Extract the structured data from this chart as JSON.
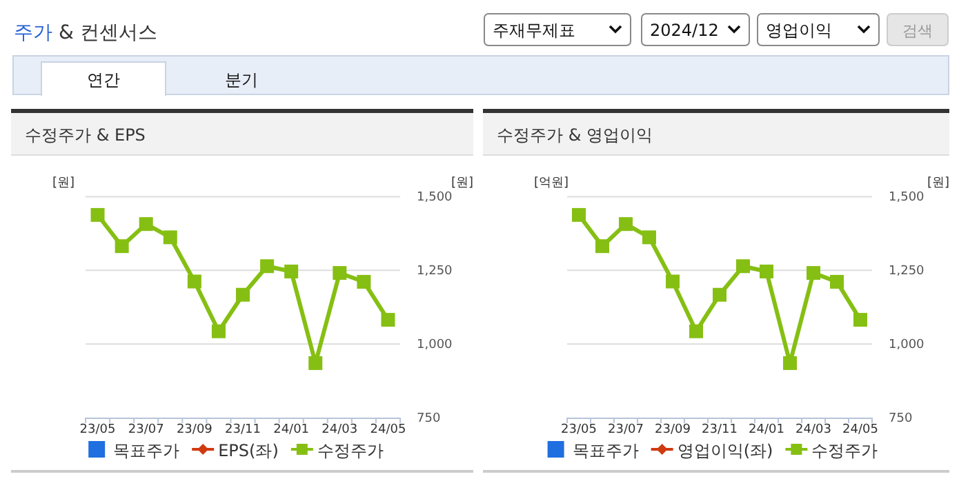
{
  "chart_data": [
    {
      "type": "other",
      "title": "주가 & 컨센서스",
      "annotations": [
        "주재무제표",
        "2024/12",
        "영업이익",
        "검색",
        "연간",
        "분기"
      ]
    },
    {
      "type": "line",
      "title": "수정주가 & EPS",
      "ylabel": "[원]",
      "y2label": "[원]",
      "categories": [
        "23/05",
        null,
        "23/07",
        null,
        "23/09",
        null,
        "23/11",
        null,
        "24/01",
        null,
        "24/03",
        null,
        "24/05"
      ],
      "y2lim": [
        750,
        1500
      ],
      "y2ticks": [
        {
          "value": 750,
          "label": "750"
        },
        {
          "value": 1000,
          "label": "1,000"
        },
        {
          "value": 1250,
          "label": "1,250"
        },
        {
          "value": 1500,
          "label": "1,500"
        }
      ],
      "grid": "y",
      "legend": "bottom",
      "series": [
        {
          "name": "목표주가",
          "type": "bar",
          "color": "#1f6fe0",
          "values": [
            null,
            null,
            null,
            null,
            null,
            null,
            null,
            null,
            null,
            null,
            null,
            null,
            null
          ]
        },
        {
          "name": "EPS(좌)",
          "type": "line",
          "marker": "diamond",
          "color": "#d03a10",
          "values": [
            null,
            null,
            null,
            null,
            null,
            null,
            null,
            null,
            null,
            null,
            null,
            null,
            null
          ]
        },
        {
          "name": "수정주가",
          "type": "line",
          "marker": "square",
          "axis": "y2",
          "color": "#86bf13",
          "values": [
            1438,
            1332,
            1407,
            1362,
            1212,
            1043,
            1167,
            1264,
            1246,
            935,
            1241,
            1211,
            1082
          ]
        }
      ]
    },
    {
      "type": "line",
      "title": "수정주가 & 영업이익",
      "ylabel": "[억원]",
      "y2label": "[원]",
      "categories": [
        "23/05",
        null,
        "23/07",
        null,
        "23/09",
        null,
        "23/11",
        null,
        "24/01",
        null,
        "24/03",
        null,
        "24/05"
      ],
      "y2lim": [
        750,
        1500
      ],
      "y2ticks": [
        {
          "value": 750,
          "label": "750"
        },
        {
          "value": 1000,
          "label": "1,000"
        },
        {
          "value": 1250,
          "label": "1,250"
        },
        {
          "value": 1500,
          "label": "1,500"
        }
      ],
      "grid": "y",
      "legend": "bottom",
      "series": [
        {
          "name": "목표주가",
          "type": "bar",
          "color": "#1f6fe0",
          "values": [
            null,
            null,
            null,
            null,
            null,
            null,
            null,
            null,
            null,
            null,
            null,
            null,
            null
          ]
        },
        {
          "name": "영업이익(좌)",
          "type": "line",
          "marker": "diamond",
          "color": "#d03a10",
          "values": [
            null,
            null,
            null,
            null,
            null,
            null,
            null,
            null,
            null,
            null,
            null,
            null,
            null
          ]
        },
        {
          "name": "수정주가",
          "type": "line",
          "marker": "square",
          "axis": "y2",
          "color": "#86bf13",
          "values": [
            1438,
            1332,
            1407,
            1362,
            1212,
            1043,
            1167,
            1264,
            1246,
            935,
            1241,
            1211,
            1082
          ]
        }
      ]
    }
  ]
}
